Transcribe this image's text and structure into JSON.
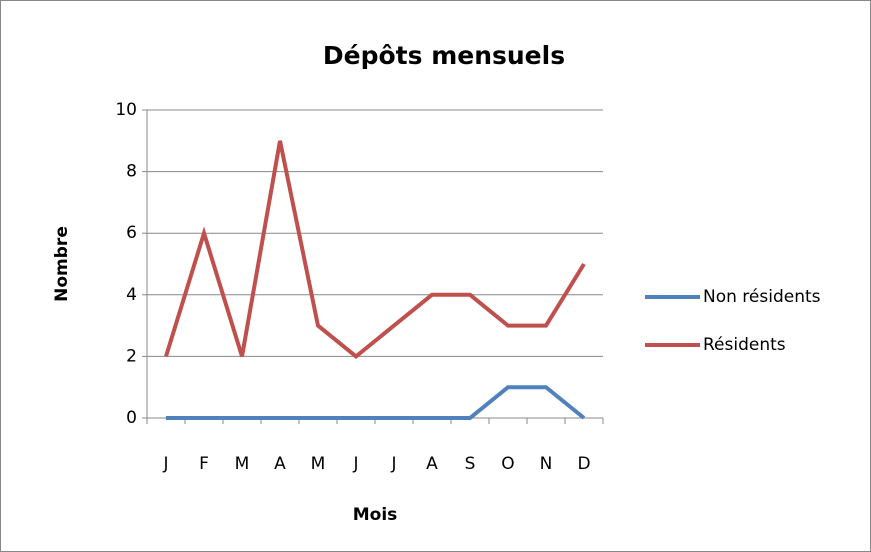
{
  "chart_data": {
    "type": "line",
    "title": "Dépôts mensuels",
    "x_label": "Mois",
    "y_label": "Nombre",
    "categories": [
      "J",
      "F",
      "M",
      "A",
      "M",
      "J",
      "J",
      "A",
      "S",
      "O",
      "N",
      "D"
    ],
    "series": [
      {
        "name": "Non résidents",
        "color": "#4f81bd",
        "values": [
          0,
          0,
          0,
          0,
          0,
          0,
          0,
          0,
          0,
          1,
          1,
          0
        ]
      },
      {
        "name": "Résidents",
        "color": "#c0504d",
        "values": [
          2,
          6,
          2,
          9,
          3,
          2,
          3,
          4,
          4,
          3,
          3,
          5
        ]
      }
    ],
    "ylim": [
      0,
      10
    ],
    "yticks": [
      0,
      2,
      4,
      6,
      8,
      10
    ],
    "grid": true,
    "legend": "right"
  }
}
